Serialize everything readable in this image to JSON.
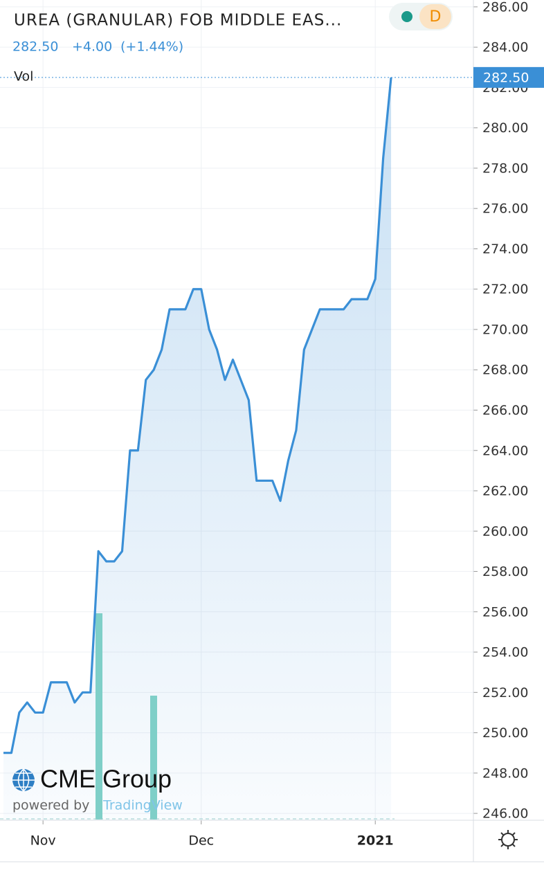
{
  "header": {
    "title": "UREA (GRANULAR) FOB MIDDLE EAS...",
    "change": "+4.00",
    "change_pct": "(+1.44%)",
    "volume_label": "Vol",
    "interval": "D"
  },
  "logo": {
    "brand": "CME Group",
    "powered": "powered by",
    "platform": "TradingView"
  },
  "chart_data": {
    "type": "line",
    "color": "#3a8fd6",
    "categories": [
      null,
      null,
      null,
      null,
      null,
      "Nov",
      null,
      null,
      null,
      null,
      null,
      null,
      null,
      null,
      null,
      null,
      null,
      null,
      null,
      null,
      null,
      null,
      null,
      null,
      null,
      "Dec",
      null,
      null,
      null,
      null,
      null,
      null,
      null,
      null,
      null,
      null,
      null,
      null,
      null,
      null,
      null,
      null,
      null,
      null,
      null,
      null,
      null,
      "2021",
      null,
      null
    ],
    "values": [
      249,
      249,
      251,
      251.5,
      251,
      251,
      252.5,
      252.5,
      252.5,
      251.5,
      252,
      252,
      259,
      258.5,
      258.5,
      259,
      264,
      264,
      267.5,
      268,
      269,
      271,
      271,
      271,
      272,
      272,
      270,
      269,
      267.5,
      268.5,
      267.5,
      266.5,
      262.5,
      262.5,
      262.5,
      261.5,
      263.5,
      265,
      269,
      270,
      271,
      271,
      271,
      271,
      271.5,
      271.5,
      271.5,
      272.5,
      278.5,
      282.5
    ],
    "value_labels": [
      null,
      null,
      null,
      null,
      null,
      null,
      null,
      null,
      null,
      null,
      null,
      null,
      null,
      null,
      null,
      null,
      null,
      null,
      null,
      null,
      null,
      null,
      null,
      null,
      null,
      null,
      null,
      null,
      null,
      null,
      null,
      null,
      null,
      null,
      null,
      null,
      null,
      null,
      null,
      null,
      null,
      null,
      null,
      null,
      null,
      null,
      null,
      null,
      null,
      "282.50"
    ],
    "ylim": [
      245.66,
      286.34
    ],
    "yticks": [
      {
        "value": 246,
        "label": "246.00"
      },
      {
        "value": 248,
        "label": "248.00"
      },
      {
        "value": 250,
        "label": "250.00"
      },
      {
        "value": 252,
        "label": "252.00"
      },
      {
        "value": 254,
        "label": "254.00"
      },
      {
        "value": 256,
        "label": "256.00"
      },
      {
        "value": 258,
        "label": "258.00"
      },
      {
        "value": 260,
        "label": "260.00"
      },
      {
        "value": 262,
        "label": "262.00"
      },
      {
        "value": 264,
        "label": "264.00"
      },
      {
        "value": 266,
        "label": "266.00"
      },
      {
        "value": 268,
        "label": "268.00"
      },
      {
        "value": 270,
        "label": "270.00"
      },
      {
        "value": 272,
        "label": "272.00"
      },
      {
        "value": 274,
        "label": "274.00"
      },
      {
        "value": 276,
        "label": "276.00"
      },
      {
        "value": 278,
        "label": "278.00"
      },
      {
        "value": 280,
        "label": "280.00"
      },
      {
        "value": 282,
        "label": "282.00"
      },
      {
        "value": 284,
        "label": "284.00"
      },
      {
        "value": 286,
        "label": "286.00"
      }
    ],
    "grid": true
  }
}
